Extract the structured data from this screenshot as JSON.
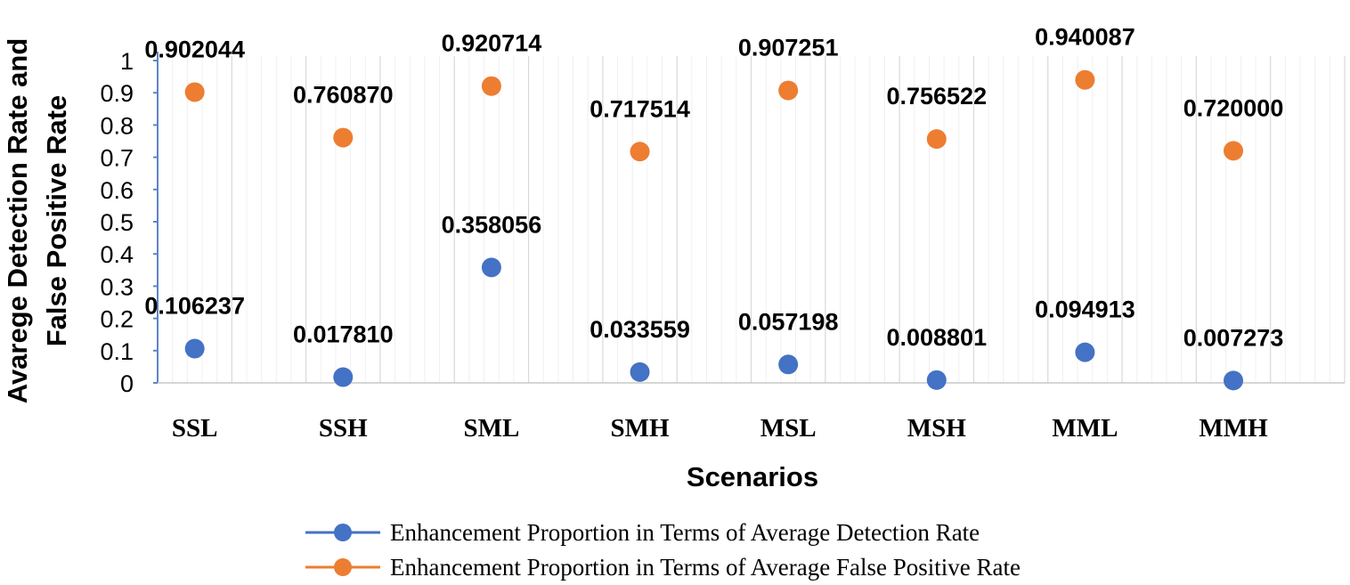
{
  "chart_data": {
    "type": "scatter",
    "title": "",
    "categories": [
      "SSL",
      "SSH",
      "SML",
      "SMH",
      "MSL",
      "MSH",
      "MML",
      "MMH"
    ],
    "series": [
      {
        "name": "Enhancement Proportion in Terms of Average Detection Rate",
        "color": "#4472C4",
        "values": [
          0.106237,
          0.01781,
          0.358056,
          0.033559,
          0.057198,
          0.008801,
          0.094913,
          0.007273
        ],
        "labels": [
          "0.106237",
          "0.017810",
          "0.358056",
          "0.033559",
          "0.057198",
          "0.008801",
          "0.094913",
          "0.007273"
        ]
      },
      {
        "name": "Enhancement Proportion in Terms of Average False Positive Rate",
        "color": "#ED7D31",
        "values": [
          0.902044,
          0.76087,
          0.920714,
          0.717514,
          0.907251,
          0.756522,
          0.940087,
          0.72
        ],
        "labels": [
          "0.902044",
          "0.760870",
          "0.920714",
          "0.717514",
          "0.907251",
          "0.756522",
          "0.940087",
          "0.720000"
        ]
      }
    ],
    "xlabel": "Scenarios",
    "ylabel_lines": [
      "Avarege Detection Rate and",
      "False Positive Rate"
    ],
    "ylim": [
      0,
      1
    ],
    "yticks": [
      0,
      0.1,
      0.2,
      0.3,
      0.4,
      0.5,
      0.6,
      0.7,
      0.8,
      0.9,
      1
    ],
    "ytick_labels": [
      "0",
      "0.1",
      "0.2",
      "0.3",
      "0.4",
      "0.5",
      "0.6",
      "0.7",
      "0.8",
      "0.9",
      "1"
    ],
    "grid": "vertical",
    "legend_position": "bottom"
  }
}
